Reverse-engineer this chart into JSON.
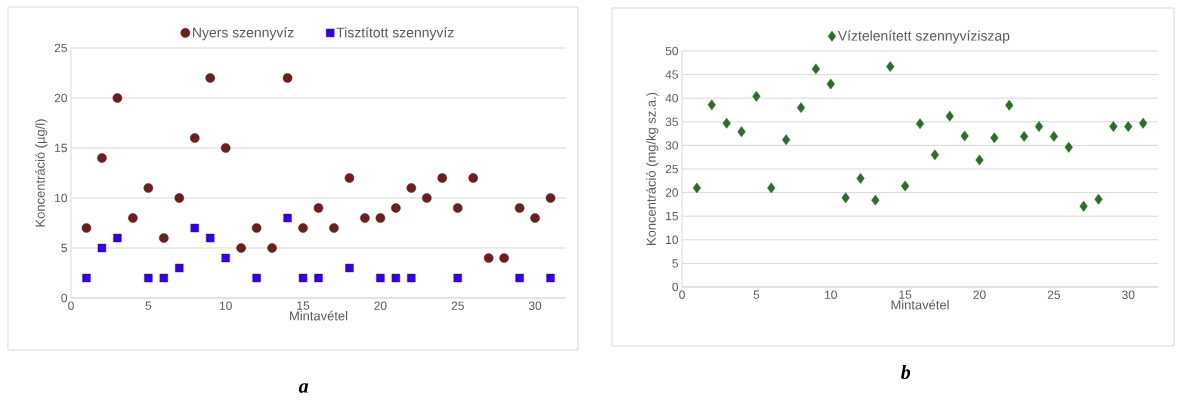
{
  "chart_data": [
    {
      "type": "scatter",
      "xlabel": "Mintavétel",
      "ylabel": "Koncentráció (µg/l)",
      "xlim": [
        0,
        32
      ],
      "xticks": [
        0,
        5,
        10,
        15,
        20,
        25,
        30
      ],
      "ylim": [
        0,
        25
      ],
      "yticks": [
        0,
        5,
        10,
        15,
        20,
        25
      ],
      "grid": "y",
      "legend": "top",
      "annotations": [
        "a"
      ],
      "series": [
        {
          "name": "Nyers szennyvíz",
          "color": "#6b1e1e",
          "marker": "circle",
          "x": [
            1,
            2,
            3,
            4,
            5,
            6,
            7,
            8,
            9,
            10,
            11,
            12,
            13,
            14,
            15,
            16,
            17,
            18,
            19,
            20,
            21,
            22,
            23,
            24,
            25,
            26,
            27,
            28,
            29,
            30,
            31
          ],
          "values": [
            7,
            14,
            20,
            8,
            11,
            6,
            10,
            16,
            22,
            15,
            5,
            7,
            5,
            22,
            7,
            9,
            7,
            12,
            8,
            8,
            9,
            11,
            10,
            12,
            9,
            12,
            4,
            4,
            9,
            8,
            10
          ]
        },
        {
          "name": "Tisztított szennyvíz",
          "color": "#3300e6",
          "marker": "square",
          "x": [
            1,
            2,
            3,
            5,
            6,
            7,
            8,
            9,
            10,
            12,
            14,
            15,
            16,
            18,
            20,
            21,
            22,
            25,
            29,
            31
          ],
          "values": [
            2,
            5,
            6,
            2,
            2,
            3,
            7,
            6,
            4,
            2,
            8,
            2,
            2,
            3,
            2,
            2,
            2,
            2,
            2,
            2
          ]
        }
      ]
    },
    {
      "type": "scatter",
      "xlabel": "Mintavétel",
      "ylabel": "Koncentráció (mg/kg sz.a.)",
      "xlim": [
        0,
        32
      ],
      "xticks": [
        0,
        5,
        10,
        15,
        20,
        25,
        30
      ],
      "ylim": [
        0,
        50
      ],
      "yticks": [
        0,
        5,
        10,
        15,
        20,
        25,
        30,
        35,
        40,
        45,
        50
      ],
      "grid": "y",
      "legend": "top",
      "annotations": [
        "b"
      ],
      "series": [
        {
          "name": "Víztelenített szennyvíziszap",
          "color": "#2a6e2a",
          "marker": "diamond",
          "x": [
            1,
            2,
            3,
            4,
            5,
            6,
            7,
            8,
            9,
            10,
            11,
            12,
            13,
            14,
            15,
            16,
            17,
            18,
            19,
            20,
            21,
            22,
            23,
            24,
            25,
            26,
            27,
            28,
            29,
            30,
            31
          ],
          "values": [
            21,
            38.6,
            34.7,
            32.9,
            40.4,
            21,
            31.2,
            38,
            46.2,
            43,
            18.9,
            23,
            18.4,
            46.7,
            21.4,
            34.6,
            28,
            36.2,
            32,
            26.9,
            31.6,
            38.5,
            31.9,
            34,
            31.9,
            29.6,
            17.1,
            18.6,
            34,
            34,
            34.7
          ]
        }
      ]
    }
  ]
}
